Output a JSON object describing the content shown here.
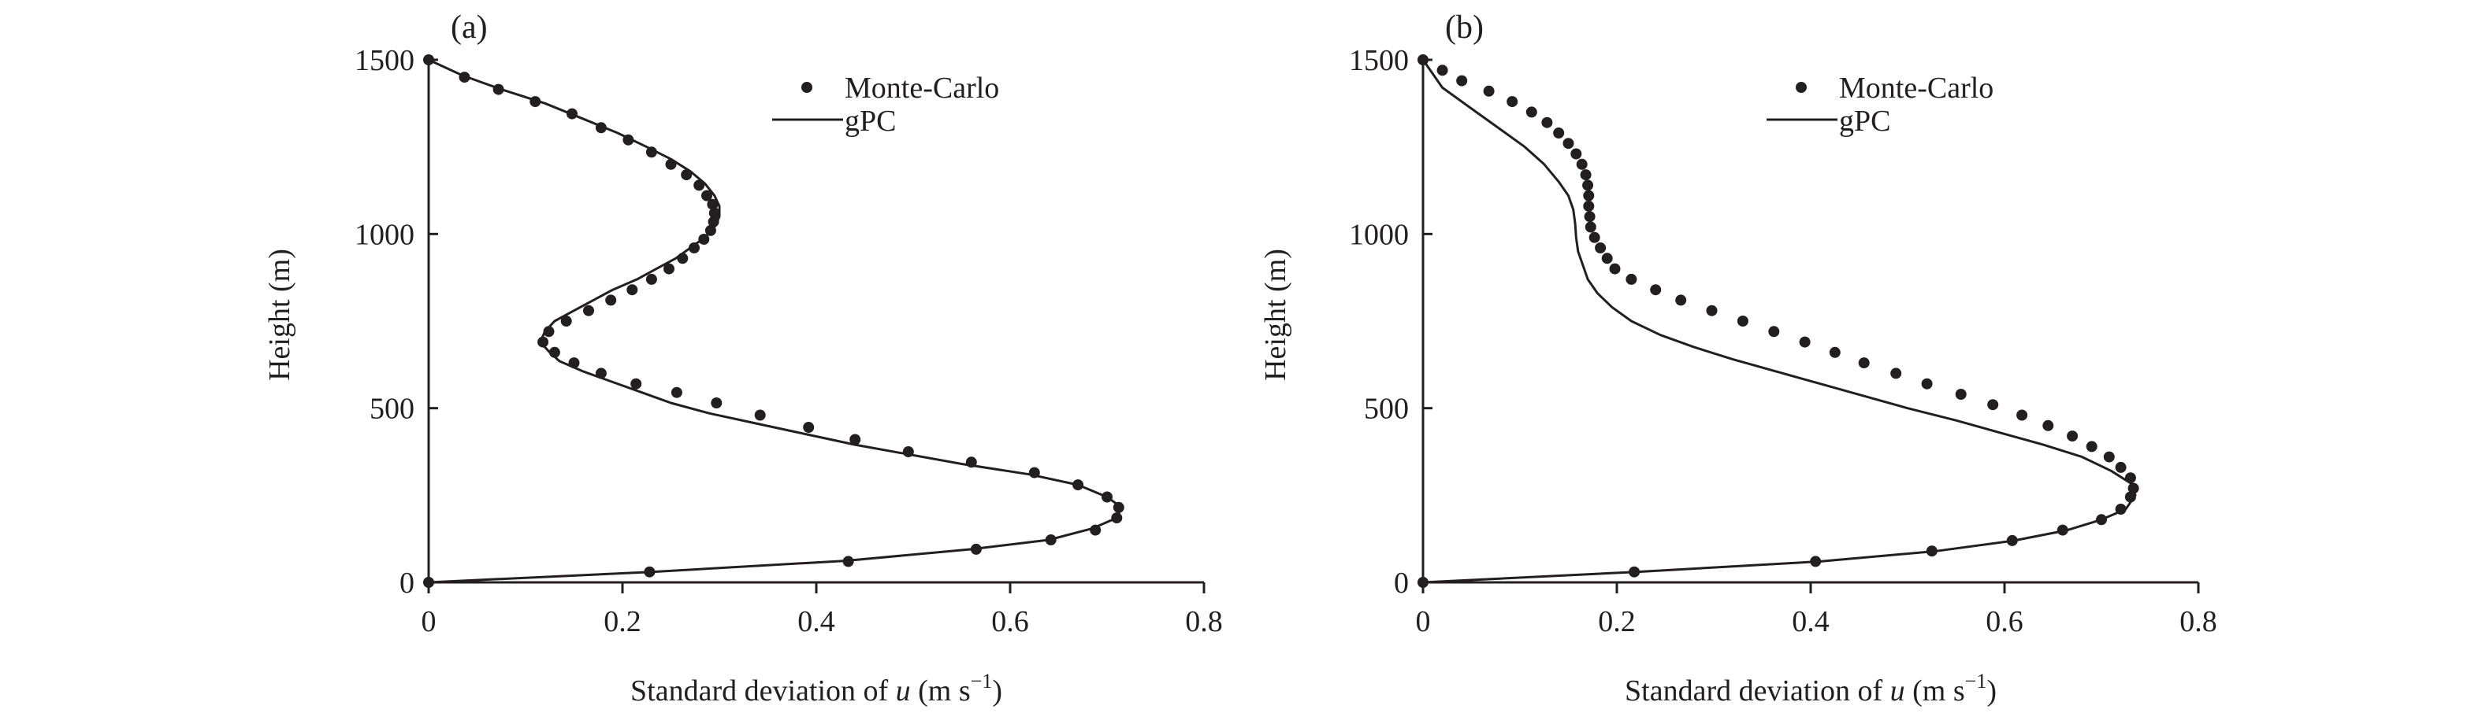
{
  "colors": {
    "ink": "#231f20",
    "background": "#ffffff"
  },
  "chart_data": [
    {
      "panel_label": "(a)",
      "type": "line",
      "xlabel_prefix": "Standard deviation of ",
      "xlabel_var": "u",
      "xlabel_units": " (m s",
      "xlabel_exp": "−1",
      "xlabel_close": ")",
      "ylabel": "Height (m)",
      "xlim": [
        0,
        0.8
      ],
      "ylim": [
        0,
        1500
      ],
      "xticks": [
        0,
        0.2,
        0.4,
        0.6,
        0.8
      ],
      "xtick_labels": [
        "0",
        "0.2",
        "0.4",
        "0.6",
        "0.8"
      ],
      "yticks": [
        0,
        500,
        1000,
        1500
      ],
      "ytick_labels": [
        "0",
        "500",
        "1000",
        "1500"
      ],
      "legend": {
        "position": "top-right",
        "markers_label": "Monte-Carlo",
        "line_label": "gPC"
      },
      "gpc": {
        "x": [
          0,
          0.23,
          0.43,
          0.56,
          0.64,
          0.685,
          0.71,
          0.715,
          0.7,
          0.67,
          0.62,
          0.55,
          0.49,
          0.44,
          0.39,
          0.34,
          0.29,
          0.25,
          0.22,
          0.19,
          0.16,
          0.135,
          0.125,
          0.115,
          0.12,
          0.13,
          0.15,
          0.17,
          0.19,
          0.215,
          0.235,
          0.255,
          0.27,
          0.285,
          0.295,
          0.3,
          0.3,
          0.295,
          0.285,
          0.27,
          0.25,
          0.225,
          0.195,
          0.16,
          0.12,
          0.075,
          0.035,
          0
        ],
        "y": [
          0,
          30,
          62,
          95,
          122,
          155,
          185,
          215,
          245,
          280,
          310,
          340,
          370,
          395,
          425,
          455,
          485,
          515,
          545,
          575,
          605,
          635,
          660,
          690,
          720,
          750,
          780,
          810,
          840,
          870,
          900,
          930,
          960,
          990,
          1020,
          1050,
          1080,
          1110,
          1145,
          1180,
          1215,
          1250,
          1290,
          1330,
          1375,
          1415,
          1455,
          1500
        ]
      },
      "monte_carlo": {
        "x": [
          0,
          0.228,
          0.433,
          0.565,
          0.642,
          0.688,
          0.71,
          0.712,
          0.7,
          0.67,
          0.625,
          0.56,
          0.495,
          0.44,
          0.392,
          0.342,
          0.297,
          0.256,
          0.214,
          0.178,
          0.15,
          0.13,
          0.118,
          0.124,
          0.142,
          0.165,
          0.188,
          0.21,
          0.23,
          0.248,
          0.262,
          0.274,
          0.284,
          0.291,
          0.294,
          0.295,
          0.293,
          0.287,
          0.279,
          0.266,
          0.25,
          0.23,
          0.206,
          0.178,
          0.148,
          0.11,
          0.072,
          0.037,
          0
        ],
        "y": [
          0,
          30,
          60,
          95,
          122,
          150,
          185,
          215,
          245,
          280,
          315,
          345,
          375,
          410,
          445,
          480,
          515,
          545,
          570,
          600,
          630,
          660,
          690,
          720,
          750,
          780,
          810,
          840,
          870,
          900,
          930,
          960,
          985,
          1010,
          1035,
          1060,
          1085,
          1110,
          1140,
          1170,
          1200,
          1235,
          1270,
          1305,
          1345,
          1380,
          1415,
          1450,
          1500
        ]
      }
    },
    {
      "panel_label": "(b)",
      "type": "line",
      "xlabel_prefix": "Standard deviation of ",
      "xlabel_var": "u",
      "xlabel_units": " (m s",
      "xlabel_exp": "−1",
      "xlabel_close": ")",
      "ylabel": "Height (m)",
      "xlim": [
        0,
        0.8
      ],
      "ylim": [
        0,
        1500
      ],
      "xticks": [
        0,
        0.2,
        0.4,
        0.6,
        0.8
      ],
      "xtick_labels": [
        "0",
        "0.2",
        "0.4",
        "0.6",
        "0.8"
      ],
      "yticks": [
        0,
        500,
        1000,
        1500
      ],
      "ytick_labels": [
        "0",
        "500",
        "1000",
        "1500"
      ],
      "legend": {
        "position": "top-right",
        "markers_label": "Monte-Carlo",
        "line_label": "gPC"
      },
      "gpc": {
        "x": [
          0,
          0.22,
          0.41,
          0.53,
          0.61,
          0.665,
          0.7,
          0.725,
          0.735,
          0.73,
          0.71,
          0.68,
          0.64,
          0.595,
          0.55,
          0.5,
          0.455,
          0.41,
          0.365,
          0.32,
          0.28,
          0.245,
          0.215,
          0.195,
          0.18,
          0.17,
          0.165,
          0.16,
          0.158,
          0.157,
          0.155,
          0.15,
          0.14,
          0.125,
          0.105,
          0.08,
          0.05,
          0.02,
          0
        ],
        "y": [
          0,
          30,
          60,
          90,
          120,
          150,
          180,
          210,
          250,
          285,
          320,
          360,
          395,
          430,
          465,
          500,
          535,
          570,
          605,
          640,
          675,
          710,
          750,
          790,
          830,
          870,
          910,
          950,
          990,
          1030,
          1070,
          1110,
          1150,
          1200,
          1250,
          1300,
          1360,
          1420,
          1500
        ]
      },
      "monte_carlo": {
        "x": [
          0,
          0.218,
          0.405,
          0.525,
          0.608,
          0.66,
          0.7,
          0.72,
          0.73,
          0.733,
          0.73,
          0.72,
          0.708,
          0.69,
          0.67,
          0.645,
          0.618,
          0.588,
          0.555,
          0.52,
          0.488,
          0.455,
          0.425,
          0.394,
          0.362,
          0.33,
          0.298,
          0.266,
          0.24,
          0.215,
          0.198,
          0.19,
          0.183,
          0.177,
          0.173,
          0.172,
          0.171,
          0.171,
          0.17,
          0.168,
          0.164,
          0.158,
          0.15,
          0.14,
          0.128,
          0.112,
          0.092,
          0.068,
          0.04,
          0.02,
          0
        ],
        "y": [
          0,
          30,
          60,
          90,
          120,
          150,
          180,
          210,
          245,
          270,
          300,
          330,
          360,
          390,
          420,
          450,
          480,
          510,
          540,
          570,
          600,
          630,
          660,
          690,
          720,
          750,
          780,
          810,
          840,
          870,
          900,
          930,
          960,
          990,
          1020,
          1050,
          1080,
          1110,
          1140,
          1170,
          1200,
          1230,
          1260,
          1290,
          1320,
          1350,
          1380,
          1410,
          1440,
          1470,
          1500
        ]
      }
    }
  ]
}
